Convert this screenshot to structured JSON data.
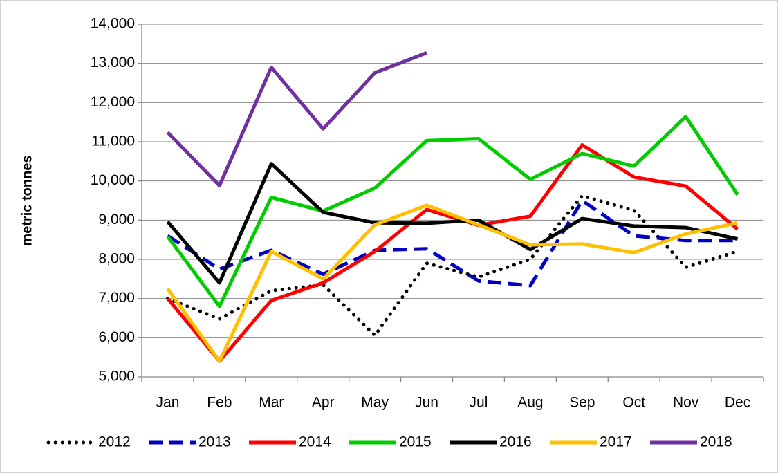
{
  "chart_data": {
    "type": "line",
    "y_label": "metric tonnes",
    "categories": [
      "Jan",
      "Feb",
      "Mar",
      "Apr",
      "May",
      "Jun",
      "Jul",
      "Aug",
      "Sep",
      "Oct",
      "Nov",
      "Dec"
    ],
    "ylim": [
      5000,
      14000
    ],
    "yticks": [
      {
        "value": 5000,
        "label": "5,000"
      },
      {
        "value": 6000,
        "label": "6,000"
      },
      {
        "value": 7000,
        "label": "7,000"
      },
      {
        "value": 8000,
        "label": "8,000"
      },
      {
        "value": 9000,
        "label": "9,000"
      },
      {
        "value": 10000,
        "label": "10,000"
      },
      {
        "value": 11000,
        "label": "11,000"
      },
      {
        "value": 12000,
        "label": "12,000"
      },
      {
        "value": 13000,
        "label": "13,000"
      },
      {
        "value": 14000,
        "label": "14,000"
      }
    ],
    "grid": true,
    "legend": "bottom",
    "series": [
      {
        "name": "2012",
        "color": "#000000",
        "style": "dotted",
        "values": [
          7000,
          6480,
          7200,
          7350,
          6060,
          7900,
          7550,
          8000,
          9620,
          9250,
          7800,
          8200
        ]
      },
      {
        "name": "2013",
        "color": "#0000c0",
        "style": "dashed",
        "values": [
          8600,
          7750,
          8230,
          7620,
          8230,
          8270,
          7450,
          7330,
          9500,
          8600,
          8480,
          8480
        ]
      },
      {
        "name": "2014",
        "color": "#ff0000",
        "style": "solid",
        "values": [
          7000,
          5400,
          6950,
          7400,
          8200,
          9270,
          8870,
          9100,
          10920,
          10100,
          9870,
          8770
        ]
      },
      {
        "name": "2015",
        "color": "#00cc00",
        "style": "solid",
        "values": [
          8580,
          6800,
          9580,
          9230,
          9820,
          11030,
          11080,
          10040,
          10700,
          10380,
          11640,
          9650
        ]
      },
      {
        "name": "2016",
        "color": "#000000",
        "style": "solid",
        "values": [
          8960,
          7400,
          10440,
          9200,
          8930,
          8920,
          9000,
          8250,
          9040,
          8850,
          8810,
          8520
        ]
      },
      {
        "name": "2017",
        "color": "#ffc000",
        "style": "solid",
        "values": [
          7250,
          5400,
          8200,
          7500,
          8880,
          9380,
          8880,
          8370,
          8390,
          8170,
          8650,
          8930
        ]
      },
      {
        "name": "2018",
        "color": "#7030a0",
        "style": "solid",
        "values": [
          11240,
          9880,
          12900,
          11330,
          12760,
          13270,
          null,
          null,
          null,
          null,
          null,
          null
        ]
      }
    ]
  }
}
